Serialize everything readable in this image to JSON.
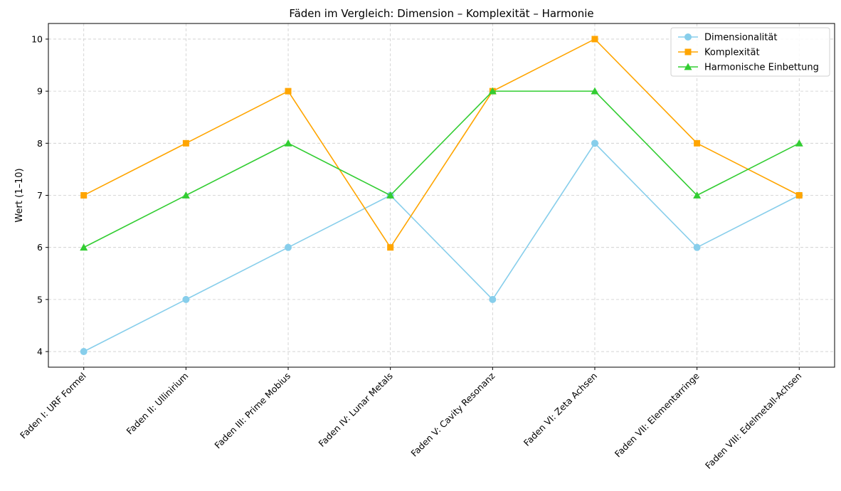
{
  "chart_data": {
    "type": "line",
    "title": "Fäden im Vergleich: Dimension – Komplexität – Harmonie",
    "xlabel": "",
    "ylabel": "Wert (1–10)",
    "categories": [
      "Faden I: URF Formel",
      "Faden II: Ullinirium",
      "Faden III: Prime Mobius",
      "Faden IV: Lunar Metals",
      "Faden V: Cavity Resonanz",
      "Faden VI: Zeta Achsen",
      "Faden VII: Elementarringe",
      "Faden VIII: Edelmetall-Achsen"
    ],
    "series": [
      {
        "name": "Dimensionalität",
        "values": [
          4,
          5,
          6,
          7,
          5,
          8,
          6,
          7
        ],
        "color": "#87ceeb",
        "marker": "circle"
      },
      {
        "name": "Komplexität",
        "values": [
          7,
          8,
          9,
          6,
          9,
          10,
          8,
          7
        ],
        "color": "#ffa500",
        "marker": "square"
      },
      {
        "name": "Harmonische Einbettung",
        "values": [
          6,
          7,
          8,
          7,
          9,
          9,
          7,
          8
        ],
        "color": "#32cd32",
        "marker": "triangle"
      }
    ],
    "ylim": [
      3.7,
      10.3
    ],
    "yticks": [
      4,
      5,
      6,
      7,
      8,
      9,
      10
    ],
    "grid": true,
    "legend_position": "top-right"
  }
}
